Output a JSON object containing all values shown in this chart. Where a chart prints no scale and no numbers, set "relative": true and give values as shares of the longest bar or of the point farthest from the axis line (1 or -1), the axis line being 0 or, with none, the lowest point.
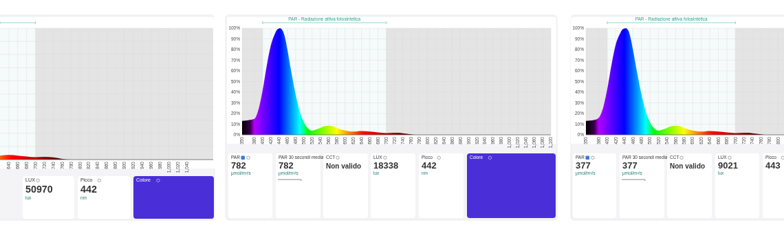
{
  "chart_data": [
    {
      "type": "area",
      "x": [
        620,
        640,
        660,
        680,
        700,
        720,
        740,
        760,
        780,
        800,
        900,
        1000,
        1100
      ],
      "values": [
        0.86,
        1,
        0.86,
        0.66,
        0.51,
        0.57,
        0.46,
        0.14,
        0,
        0,
        0,
        0,
        0
      ],
      "relative": true,
      "xlim": [
        620,
        1100
      ],
      "xticks": [
        640,
        660,
        680,
        700,
        720,
        740,
        760,
        780,
        800,
        820,
        840,
        860,
        880,
        900,
        920,
        940,
        960,
        980,
        {
          "value": 1000,
          "label": "1,000"
        },
        {
          "value": 1020,
          "label": "1,020"
        },
        {
          "value": 1040,
          "label": "1,040"
        }
      ],
      "tick_labels": "x",
      "grid": true,
      "bands": [
        {
          "axis": "x",
          "from": 700,
          "to": 1100,
          "color": "#e4e4e4"
        },
        {
          "axis": "x",
          "from": 620,
          "to": 700,
          "color": "#7fc9bd"
        }
      ]
    },
    {
      "type": "other",
      "title": "LUX",
      "annotations": [
        "50970",
        "lux"
      ]
    },
    {
      "type": "other",
      "title": "Picco",
      "annotations": [
        "442",
        "nm"
      ]
    },
    {
      "type": "other",
      "title": "Colore",
      "colors": [
        "#4a2fd9"
      ]
    },
    {
      "type": "area",
      "x": [
        350,
        370,
        380,
        390,
        400,
        410,
        420,
        430,
        436,
        442,
        448,
        455,
        460,
        470,
        480,
        490,
        500,
        510,
        520,
        530,
        540,
        550,
        560,
        570,
        580,
        590,
        600,
        620,
        640,
        660,
        680,
        700,
        720,
        730,
        740,
        760,
        770,
        800,
        900,
        1000,
        1100
      ],
      "values": [
        13,
        14,
        15,
        24,
        42,
        65,
        84,
        95,
        99,
        100,
        98,
        90,
        80,
        58,
        38,
        22,
        12,
        6,
        4,
        5,
        6.5,
        8,
        8.5,
        8,
        6.5,
        5,
        4,
        3,
        3.5,
        3,
        2.2,
        1.6,
        2,
        2,
        1.5,
        0.5,
        0,
        0,
        0,
        0,
        0
      ],
      "xlim": [
        350,
        1100
      ],
      "xticks": [
        350,
        380,
        400,
        420,
        440,
        460,
        480,
        500,
        520,
        540,
        560,
        580,
        600,
        620,
        640,
        660,
        680,
        700,
        720,
        740,
        760,
        780,
        800,
        820,
        840,
        860,
        880,
        900,
        920,
        940,
        960,
        980,
        {
          "value": 1000,
          "label": "1,000"
        },
        {
          "value": 1020,
          "label": "1,020"
        },
        {
          "value": 1040,
          "label": "1,040"
        },
        {
          "value": 1060,
          "label": "1,060"
        },
        {
          "value": 1080,
          "label": "1,080"
        },
        {
          "value": 1100,
          "label": "1,100"
        }
      ],
      "ylim": [
        0,
        100
      ],
      "yticks": [
        {
          "value": 0,
          "label": "0%"
        },
        {
          "value": 10,
          "label": "10%"
        },
        {
          "value": 20,
          "label": "20%"
        },
        {
          "value": 30,
          "label": "30%"
        },
        {
          "value": 40,
          "label": "40%"
        },
        {
          "value": 50,
          "label": "50%"
        },
        {
          "value": 60,
          "label": "60%"
        },
        {
          "value": 70,
          "label": "70%"
        },
        {
          "value": 80,
          "label": "80%"
        },
        {
          "value": 90,
          "label": "90%"
        },
        {
          "value": 100,
          "label": "100%"
        }
      ],
      "grid": true,
      "bands": [
        {
          "axis": "x",
          "from": 350,
          "to": 400,
          "color": "#e4e4e4"
        },
        {
          "axis": "x",
          "from": 700,
          "to": 1100,
          "color": "#e4e4e4"
        },
        {
          "axis": "x",
          "from": 400,
          "to": 700,
          "label": "PAR - Radiazione attiva fotosintetica",
          "color": "#7fc9bd"
        }
      ]
    },
    {
      "type": "other",
      "title": "PAR",
      "annotations": [
        "782",
        "μmol/m²/s"
      ]
    },
    {
      "type": "other",
      "title": "PAR 30 secondi media",
      "annotations": [
        "782",
        "μmol/m²/s"
      ]
    },
    {
      "type": "other",
      "title": "CCT",
      "annotations": [
        "Non valido"
      ]
    },
    {
      "type": "other",
      "title": "LUX",
      "annotations": [
        "18338",
        "lux"
      ]
    },
    {
      "type": "other",
      "title": "Picco",
      "annotations": [
        "442",
        "nm"
      ]
    },
    {
      "type": "other",
      "title": "Colore",
      "colors": [
        "#4a2fd9"
      ]
    },
    {
      "type": "area",
      "x": [
        350,
        370,
        380,
        390,
        400,
        410,
        420,
        430,
        436,
        443,
        449,
        455,
        460,
        470,
        480,
        490,
        500,
        510,
        520,
        530,
        540,
        550,
        560,
        570,
        580,
        590,
        600,
        620,
        640,
        660,
        680,
        700,
        720,
        730,
        740,
        760,
        770,
        800,
        830
      ],
      "values": [
        13,
        14,
        16,
        25,
        43,
        66,
        85,
        95,
        99,
        100,
        98,
        90,
        80,
        58,
        38,
        22,
        12,
        6,
        4,
        5,
        6.5,
        8,
        8.5,
        8,
        6.5,
        5,
        4,
        3,
        3.5,
        3,
        2.2,
        1.6,
        2,
        2,
        1.5,
        0.5,
        0,
        0,
        0
      ],
      "xlim": [
        350,
        830
      ],
      "xticks": [
        350,
        380,
        400,
        420,
        440,
        460,
        480,
        500,
        520,
        540,
        560,
        580,
        600,
        620,
        640,
        660,
        680,
        700,
        720,
        740,
        760,
        780,
        800
      ],
      "ylim": [
        0,
        100
      ],
      "yticks": [
        {
          "value": 0,
          "label": "0%"
        },
        {
          "value": 10,
          "label": "10%"
        },
        {
          "value": 20,
          "label": "20%"
        },
        {
          "value": 30,
          "label": "30%"
        },
        {
          "value": 40,
          "label": "40%"
        },
        {
          "value": 50,
          "label": "50%"
        },
        {
          "value": 60,
          "label": "60%"
        },
        {
          "value": 70,
          "label": "70%"
        },
        {
          "value": 80,
          "label": "80%"
        },
        {
          "value": 90,
          "label": "90%"
        },
        {
          "value": 100,
          "label": "100%"
        }
      ],
      "grid": true,
      "bands": [
        {
          "axis": "x",
          "from": 350,
          "to": 400,
          "color": "#e4e4e4"
        },
        {
          "axis": "x",
          "from": 700,
          "to": 830,
          "color": "#e4e4e4"
        },
        {
          "axis": "x",
          "from": 400,
          "to": 700,
          "label": "PAR - Radiazione attiva fotosintetica",
          "color": "#7fc9bd"
        }
      ]
    },
    {
      "type": "other",
      "title": "PAR",
      "annotations": [
        "377",
        "μmol/m²/s"
      ]
    },
    {
      "type": "other",
      "title": "PAR 30 secondi media",
      "annotations": [
        "377",
        "μmol/m²/s"
      ]
    },
    {
      "type": "other",
      "title": "CCT",
      "annotations": [
        "Non valido"
      ]
    },
    {
      "type": "other",
      "title": "LUX",
      "annotations": [
        "9021",
        "lux"
      ]
    },
    {
      "type": "other",
      "title": "Picco",
      "annotations": [
        "443"
      ]
    }
  ]
}
